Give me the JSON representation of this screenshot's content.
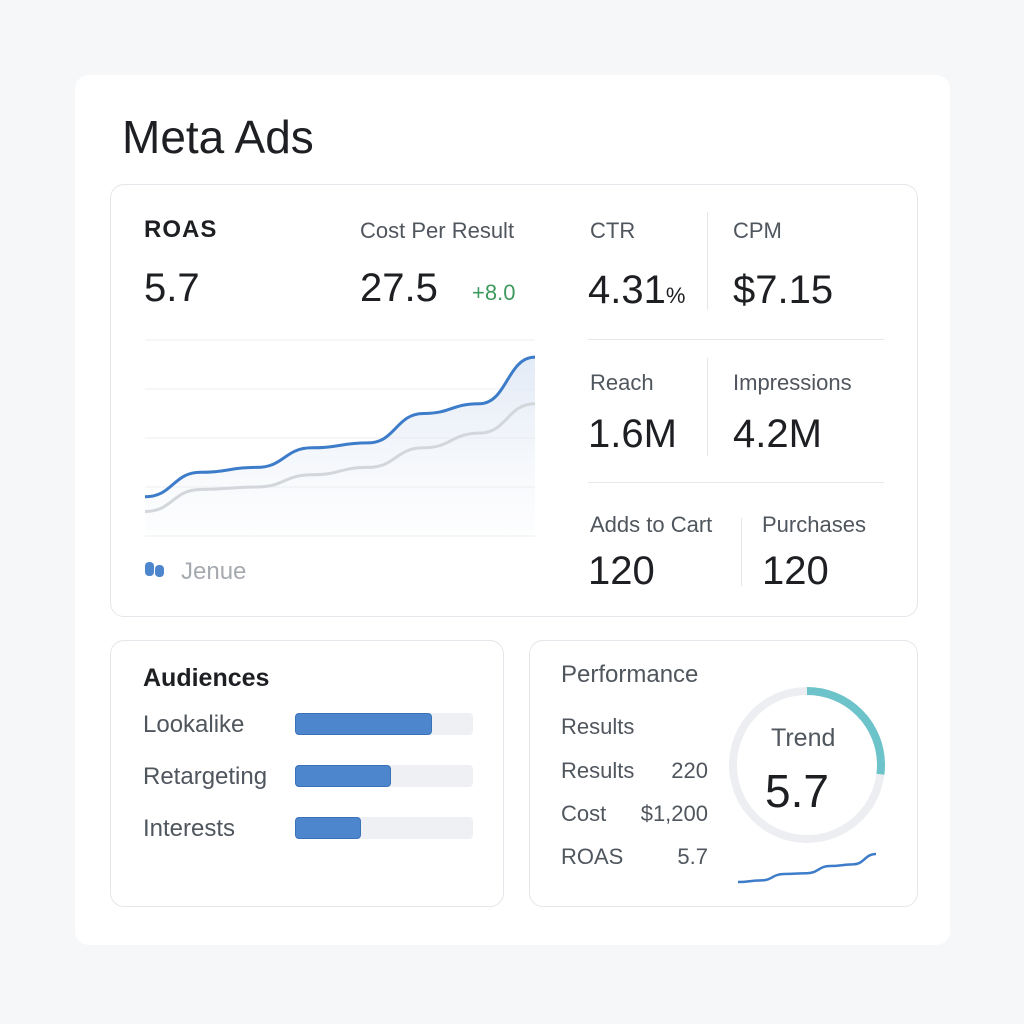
{
  "title": "Meta Ads",
  "metrics": {
    "roas": {
      "label": "ROAS",
      "value": "5.7"
    },
    "cpr": {
      "label": "Cost Per Result",
      "value": "27.5",
      "delta": "+8.0"
    },
    "ctr": {
      "label": "CTR",
      "value": "4.31",
      "unit": "%"
    },
    "cpm": {
      "label": "CPM",
      "value": "$7.15"
    },
    "reach": {
      "label": "Reach",
      "value": "1.6M"
    },
    "impressions": {
      "label": "Impressions",
      "value": "4.2M"
    },
    "adds": {
      "label": "Adds to Cart",
      "value": "120"
    },
    "purchases": {
      "label": "Purchases",
      "value": "120"
    }
  },
  "colors": {
    "accent": "#3d7cc9",
    "secondary": "#d3d6db",
    "positive": "#3f9a5f",
    "teal": "#6cc3c9"
  },
  "chart_data": {
    "type": "line",
    "legend": "Jenue",
    "grid": true,
    "series": [
      {
        "color": "#3d7cc9",
        "values": [
          0.8,
          1.3,
          1.4,
          1.8,
          1.9,
          2.5,
          2.7,
          3.65
        ]
      },
      {
        "color": "#d3d6db",
        "values": [
          0.5,
          0.95,
          1.0,
          1.25,
          1.4,
          1.8,
          2.1,
          2.7
        ]
      }
    ],
    "ylim": [
      0,
      4
    ]
  },
  "audiences": {
    "title": "Audiences",
    "items": [
      {
        "label": "Lookalike",
        "percent": 77
      },
      {
        "label": "Retargeting",
        "percent": 54
      },
      {
        "label": "Interests",
        "percent": 37
      }
    ]
  },
  "performance": {
    "title": "Performance",
    "subtitle": "Results",
    "rows": [
      {
        "label": "Results",
        "value": "220"
      },
      {
        "label": "Cost",
        "value": "$1,200"
      },
      {
        "label": "ROAS",
        "value": "5.7"
      }
    ],
    "gauge": {
      "label": "Trend",
      "value": "5.7",
      "percent": 27
    },
    "sparkline": [
      0,
      0.2,
      1,
      1.1,
      2,
      2.2,
      3.5
    ]
  }
}
